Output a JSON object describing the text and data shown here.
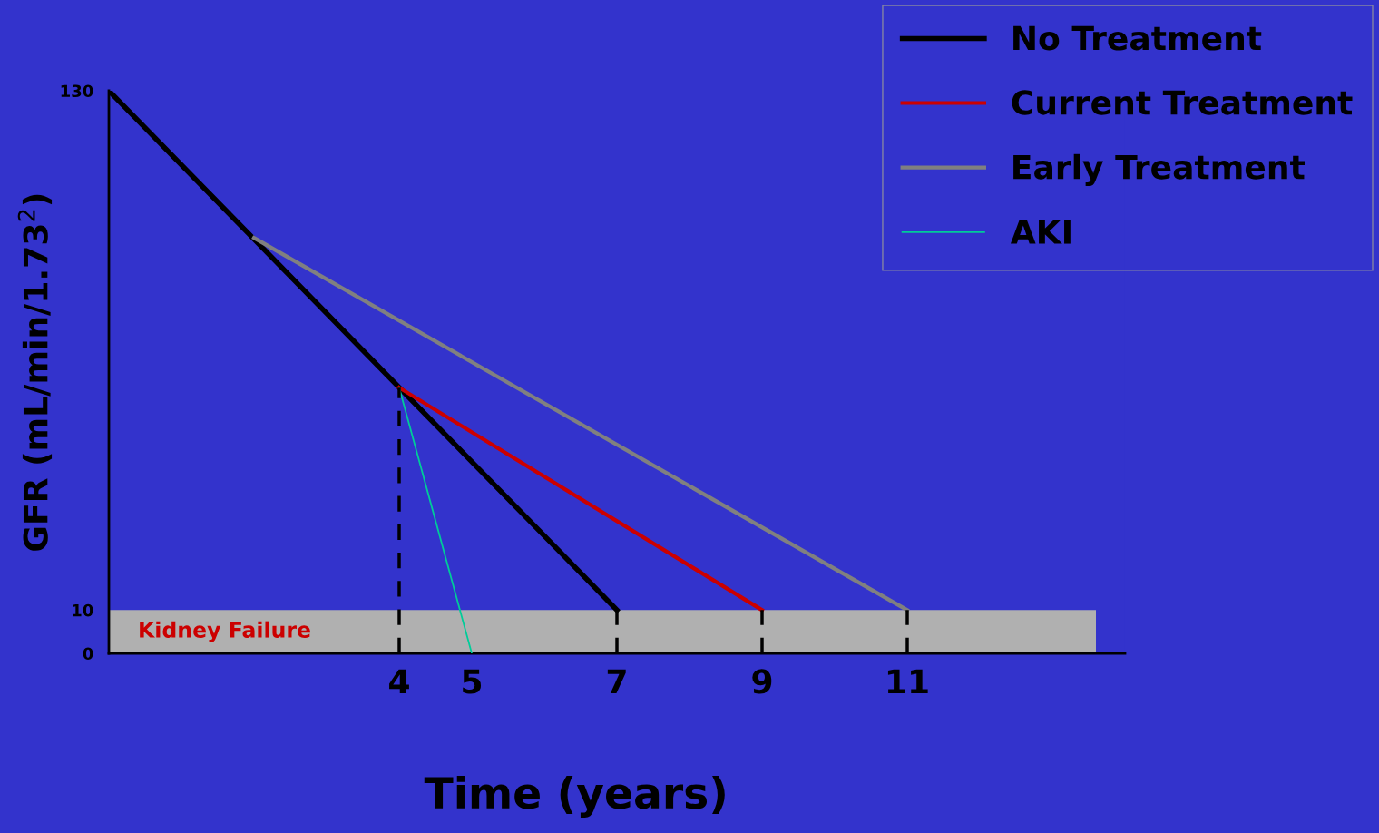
{
  "chart_data": {
    "type": "line",
    "xlabel": "Time (years)",
    "ylabel": "GFR (mL/min/1.73$^{2}$)",
    "xlim": [
      0,
      14
    ],
    "ylim": [
      0,
      130
    ],
    "xticks": [
      4,
      5,
      7,
      9,
      11
    ],
    "yticks": [
      0,
      10,
      130
    ],
    "series": [
      {
        "name": "No Treatment",
        "color": "#000000",
        "x": [
          0,
          7
        ],
        "values": [
          130,
          10
        ]
      },
      {
        "name": "Current Treatment",
        "color": "#cc0000",
        "x": [
          4,
          9
        ],
        "values": [
          61.4,
          10
        ]
      },
      {
        "name": "Early Treatment",
        "color": "#808080",
        "x": [
          2,
          11
        ],
        "values": [
          96,
          10
        ]
      },
      {
        "name": "AKI",
        "color": "#00cc99",
        "x": [
          4,
          5
        ],
        "values": [
          61.4,
          0
        ]
      },
      {
        "color": "#000000",
        "x": [
          4,
          4
        ],
        "values": [
          0,
          61.4
        ],
        "line_style": "dashed"
      },
      {
        "color": "#000000",
        "x": [
          7,
          7
        ],
        "values": [
          0,
          10
        ],
        "line_style": "dashed"
      },
      {
        "color": "#000000",
        "x": [
          9,
          9
        ],
        "values": [
          0,
          10
        ],
        "line_style": "dashed"
      },
      {
        "color": "#000000",
        "x": [
          11,
          11
        ],
        "values": [
          0,
          10
        ],
        "line_style": "dashed"
      }
    ],
    "bands": [
      {
        "axis": "y",
        "from": 0,
        "to": 10,
        "label": "Kidney Failure",
        "color": "#b0b0b0"
      }
    ],
    "legend": "top right",
    "grid": false,
    "marker": "none",
    "line_style": "solid"
  }
}
